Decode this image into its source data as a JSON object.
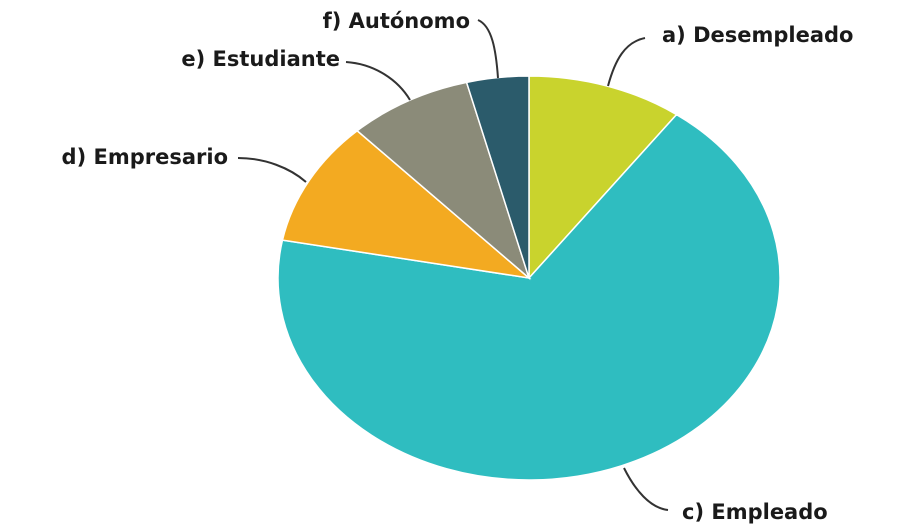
{
  "chart_data": {
    "type": "pie",
    "categories": [
      "a) Desempleado",
      "c) Empleado",
      "d) Empresario",
      "e) Estudiante",
      "f) Autónomo"
    ],
    "values": [
      10,
      68,
      10,
      8,
      4
    ],
    "colors": [
      "#c9d32d",
      "#2fbdc0",
      "#f3aa21",
      "#8b8b79",
      "#2b5b6b"
    ]
  }
}
